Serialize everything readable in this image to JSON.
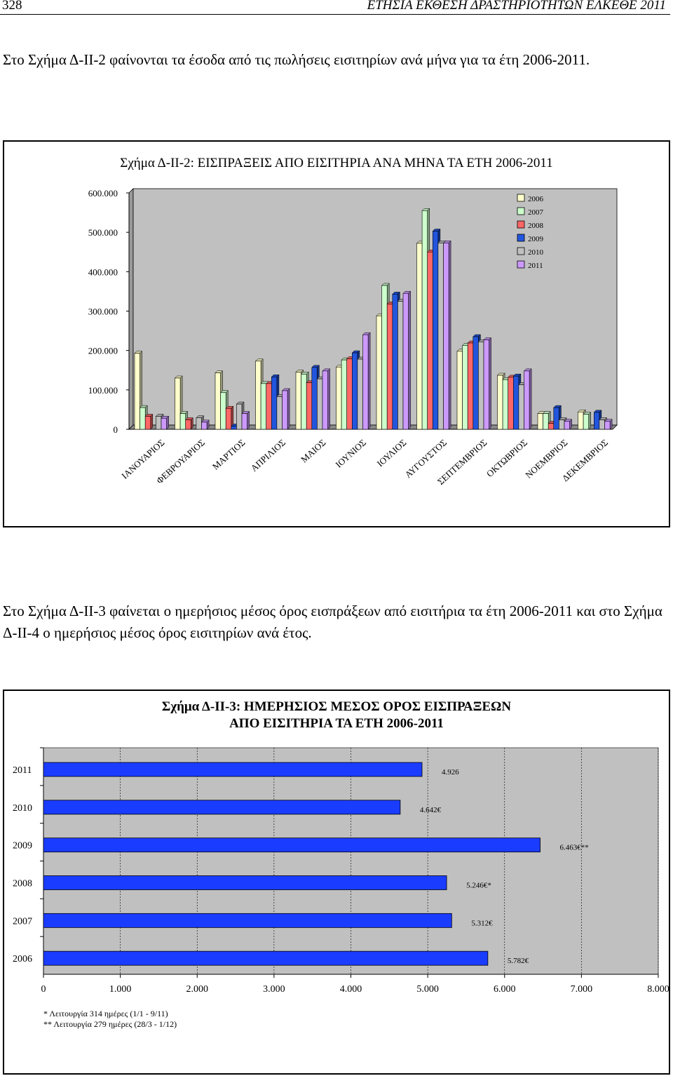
{
  "header": {
    "page_number": "328",
    "running_title": "ΕΤΗΣΙΑ ΕΚΘΕΣΗ ΔΡΑΣΤΗΡΙΟΤΗΤΩΝ ΕΛΚΕΘΕ 2011"
  },
  "paragraphs": {
    "p1": "Στο Σχήμα Δ-ΙΙ-2 φαίνονται τα έσοδα από τις πωλήσεις εισιτηρίων ανά μήνα για τα έτη 2006-2011.",
    "p2": "Στο Σχήμα Δ-ΙΙ-3 φαίνεται ο ημερήσιος μέσος όρος εισπράξεων από εισιτήρια τα έτη 2006-2011 και στο Σχήμα Δ-ΙΙ-4 ο ημερήσιος μέσος όρος εισιτηρίων ανά έτος."
  },
  "chart_data": [
    {
      "type": "bar",
      "title": "Σχήμα Δ-ΙΙ-2: ΕΙΣΠΡΑΞΕΙΣ ΑΠΟ ΕΙΣΙΤΗΡΙΑ ΑΝΑ ΜΗΝΑ ΤΑ ΕΤΗ 2006-2011",
      "categories": [
        "ΙΑΝΟΥΑΡΙΟΣ",
        "ΦΕΒΡΟΥΑΡΙΟΣ",
        "ΜΑΡΤΙΟΣ",
        "ΑΠΡΙΛΙΟΣ",
        "ΜΑΙΟΣ",
        "ΙΟΥΝΙΟΣ",
        "ΙΟΥΛΙΟΣ",
        "ΑΥΓΟΥΣΤΟΣ",
        "ΣΕΠΤΕΜΒΡΙΟΣ",
        "ΟΚΤΩΒΡΙΟΣ",
        "ΝΟΕΜΒΡΙΟΣ",
        "ΔΕΚΕΜΒΡΙΟΣ"
      ],
      "series": [
        {
          "name": "2006",
          "color": "#ffffcc",
          "values": [
            193000,
            130000,
            143000,
            173000,
            145000,
            158000,
            288000,
            472000,
            198000,
            137000,
            40000,
            44000
          ]
        },
        {
          "name": "2007",
          "color": "#ccffcc",
          "values": [
            55000,
            40000,
            93000,
            116000,
            140000,
            176000,
            365000,
            555000,
            213000,
            126000,
            40000,
            38000
          ]
        },
        {
          "name": "2008",
          "color": "#ff6666",
          "values": [
            33000,
            24000,
            53000,
            116000,
            118000,
            179000,
            318000,
            450000,
            219000,
            132000,
            15000,
            0
          ]
        },
        {
          "name": "2009",
          "color": "#2255dd",
          "values": [
            0,
            0,
            8000,
            133000,
            157000,
            194000,
            343000,
            503000,
            235000,
            135000,
            55000,
            43000
          ]
        },
        {
          "name": "2010",
          "color": "#c0c0c0",
          "values": [
            33000,
            29000,
            64000,
            83000,
            128000,
            178000,
            325000,
            473000,
            222000,
            113000,
            24000,
            24000
          ]
        },
        {
          "name": "2011",
          "color": "#cc99ff",
          "values": [
            28000,
            18000,
            40000,
            98000,
            148000,
            240000,
            345000,
            473000,
            227000,
            148000,
            20000,
            20000
          ]
        }
      ],
      "y_ticks": [
        "0",
        "100.000",
        "200.000",
        "300.000",
        "400.000",
        "500.000",
        "600.000"
      ],
      "ylim": [
        0,
        600000
      ],
      "legend": "top-right",
      "grid": false
    },
    {
      "type": "bar",
      "orientation": "horizontal",
      "title_line1": "Σχήμα Δ-ΙΙ-3: ΗΜΕΡΗΣΙΟΣ ΜΕΣΟΣ ΟΡΟΣ ΕΙΣΠΡΑΞΕΩΝ",
      "title_line2": "ΑΠΟ ΕΙΣΙΤΗΡΙΑ ΤΑ ΕΤΗ 2006-2011",
      "categories": [
        "2011",
        "2010",
        "2009",
        "2008",
        "2007",
        "2006"
      ],
      "values": [
        4926,
        4642,
        6463,
        5246,
        5312,
        5782
      ],
      "data_labels": [
        "4.926",
        "4.642€",
        "6.463€**",
        "5.246€*",
        "5.312€",
        "5.782€"
      ],
      "color": "#1a3cff",
      "x_ticks": [
        "0",
        "1.000",
        "2.000",
        "3.000",
        "4.000",
        "5.000",
        "6.000",
        "7.000",
        "8.000"
      ],
      "xlim": [
        0,
        8000
      ],
      "notes": [
        "* Λειτουργία 314 ημέρες (1/1 - 9/11)",
        "** Λειτουργία 279 ημέρες (28/3 - 1/12)"
      ]
    }
  ]
}
